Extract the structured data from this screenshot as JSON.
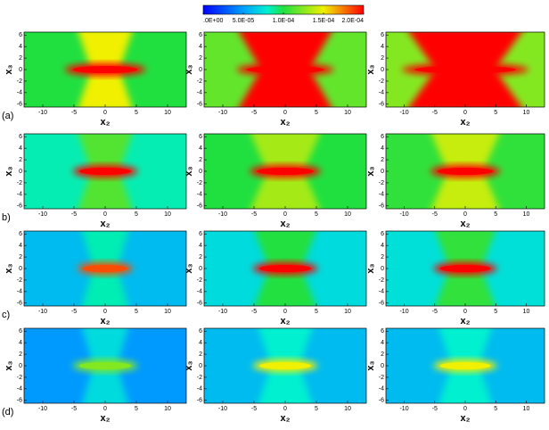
{
  "chart_data": {
    "type": "heatmap",
    "colorbar": {
      "lim": [
        0,
        0.0002
      ],
      "ticks": [
        {
          "value": 0,
          "label": ".0E+00"
        },
        {
          "value": 5e-05,
          "label": "5.0E-05"
        },
        {
          "value": 0.0001,
          "label": "1.0E-04"
        },
        {
          "value": 0.00015,
          "label": "1.5E-04"
        },
        {
          "value": 0.0002,
          "label": "2.0E-04"
        }
      ]
    },
    "xlabel": "x₂",
    "ylabel": "x₃",
    "xlim": [
      -13,
      13
    ],
    "ylim": [
      -6.5,
      6.5
    ],
    "xticks": [
      -10,
      -5,
      0,
      5,
      10
    ],
    "yticks": [
      -6,
      -4,
      -2,
      0,
      2,
      4,
      6
    ],
    "row_labels": [
      "(a)",
      "b)",
      "c)",
      "(d)"
    ]
  }
}
